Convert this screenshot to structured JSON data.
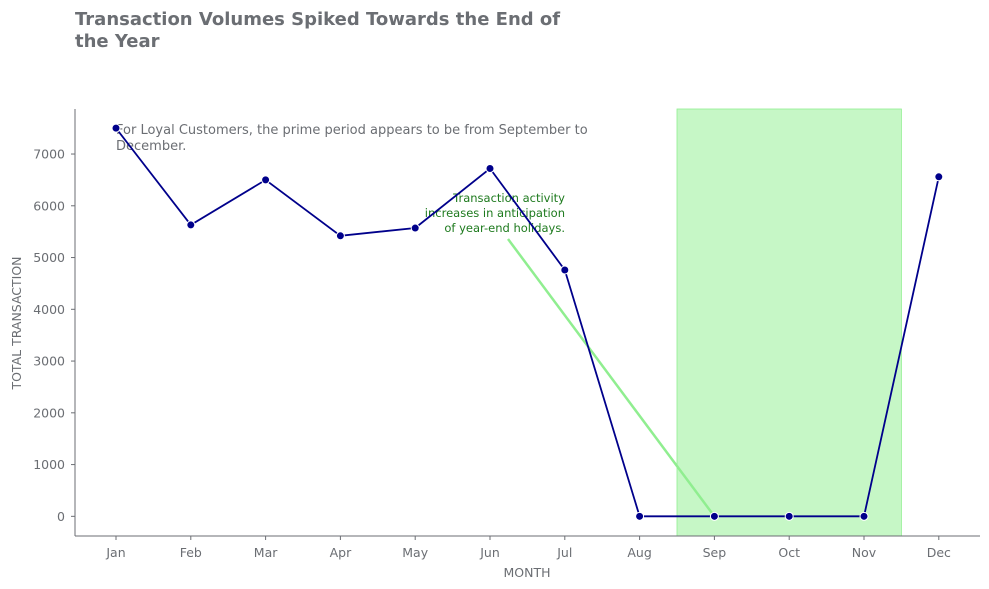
{
  "chart_data": {
    "type": "line",
    "title": "Transaction Volumes Spiked Towards the End of the Year",
    "title_lines": [
      "Transaction Volumes Spiked Towards the End of",
      "the Year"
    ],
    "subtitle_lines": [
      "For Loyal Customers, the prime period appears to be from September to",
      "December."
    ],
    "xlabel": "MONTH",
    "ylabel": "TOTAL TRANSACTION",
    "categories": [
      "Jan",
      "Feb",
      "Mar",
      "Apr",
      "May",
      "Jun",
      "Jul",
      "Aug",
      "Sep",
      "Oct",
      "Nov",
      "Dec"
    ],
    "series": [
      {
        "values": [
          7500,
          5630,
          6500,
          5420,
          5570,
          6720,
          4760,
          0,
          0,
          0,
          0,
          6560
        ]
      }
    ],
    "yticks": [
      0,
      1000,
      2000,
      3000,
      4000,
      5000,
      6000,
      7000
    ],
    "ylim": [
      -380,
      7870
    ],
    "highlight_span": [
      "Sep",
      "Nov"
    ],
    "annotation": {
      "lines": [
        "Transaction activity",
        "increases in anticipation",
        "of year-end holidays."
      ],
      "points_to": "Sep"
    },
    "grid": false,
    "colors": {
      "line": "#00008b",
      "highlight": "#c6f7c6",
      "arrow": "#90ee90",
      "annotation_text": "#1e7a1e",
      "text": "#6b6e73",
      "axis": "#6b6e73"
    }
  }
}
